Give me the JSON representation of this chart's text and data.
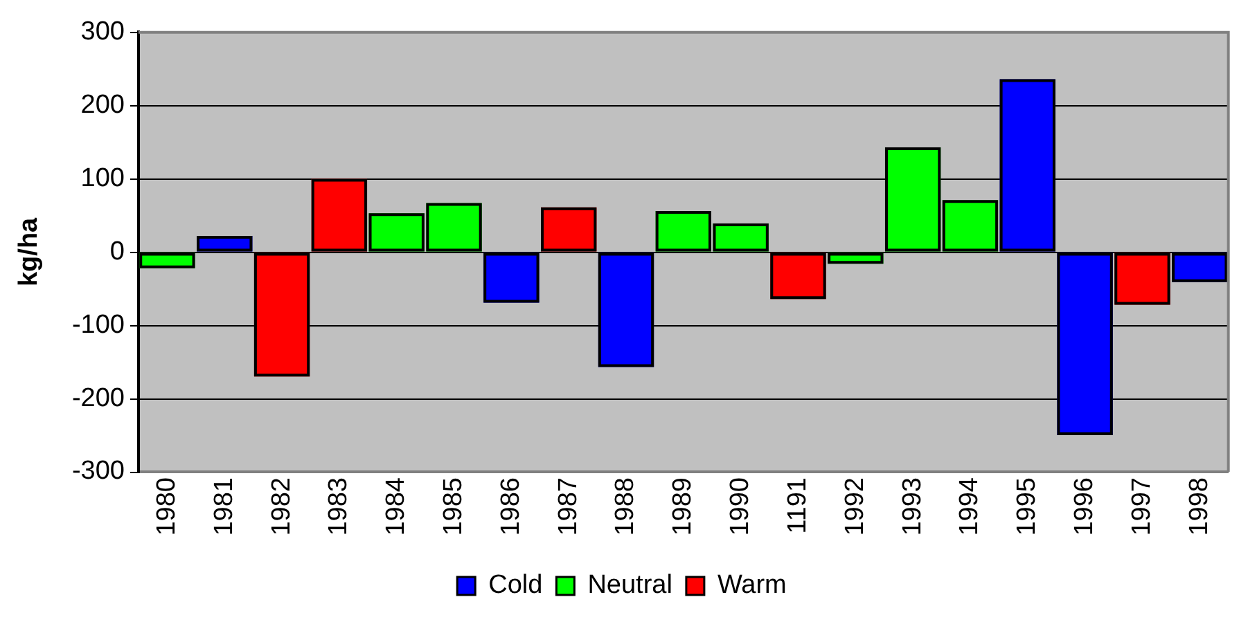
{
  "chart_data": {
    "type": "bar",
    "categories": [
      "1980",
      "1981",
      "1982",
      "1983",
      "1984",
      "1985",
      "1986",
      "1987",
      "1988",
      "1989",
      "1990",
      "1191",
      "1992",
      "1993",
      "1994",
      "1995",
      "1996",
      "1997",
      "1998"
    ],
    "ylabel": "kg/ha",
    "ylim": [
      -300,
      300
    ],
    "yticks": [
      -300,
      -200,
      -100,
      0,
      100,
      200,
      300
    ],
    "grid": "y",
    "legend": "bottom",
    "series": [
      {
        "name": "Cold",
        "color": "#0000ff",
        "values": [
          null,
          22,
          null,
          null,
          null,
          null,
          -69,
          null,
          -157,
          null,
          null,
          null,
          null,
          null,
          null,
          236,
          -250,
          null,
          -41
        ]
      },
      {
        "name": "Neutral",
        "color": "#00ff00",
        "values": [
          -22,
          null,
          null,
          null,
          53,
          67,
          null,
          null,
          null,
          56,
          39,
          null,
          -16,
          143,
          71,
          null,
          null,
          null,
          null
        ]
      },
      {
        "name": "Warm",
        "color": "#ff0000",
        "values": [
          null,
          null,
          -170,
          100,
          null,
          null,
          null,
          61,
          null,
          null,
          null,
          -64,
          null,
          null,
          null,
          null,
          null,
          -72,
          null
        ]
      }
    ]
  }
}
